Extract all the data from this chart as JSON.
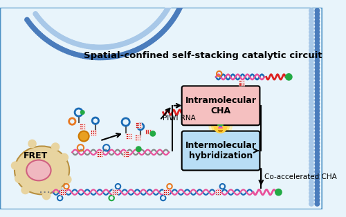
{
  "bg_color": "#e8f4fb",
  "border_color": "#4a90c4",
  "title_text": "Spatial-confined self-stacking catalytic circuit",
  "box1_label": "Intramolecular\nCHA",
  "box2_label": "Intermolecular\nhybridization",
  "box1_facecolor": "#f5c0c0",
  "box2_facecolor": "#b8ddf5",
  "label_piwi": "PIWI RNA",
  "label_fret": "FRET",
  "label_coaccel": "Co-accelerated CHA",
  "dna_blue": "#1a6bb5",
  "dna_pink": "#e8509a",
  "dna_green": "#22aa44",
  "dna_orange": "#e87820",
  "dna_red": "#dd2222",
  "dna_gray": "#888888",
  "mem_dark": "#4a7cbc",
  "mem_light": "#a8c8e8",
  "cell_body": "#e8d4a0",
  "cell_edge": "#b89040",
  "nucleus_face": "#f0b8c0",
  "nucleus_edge": "#d06080"
}
